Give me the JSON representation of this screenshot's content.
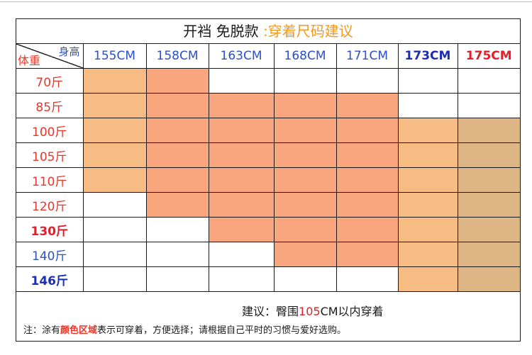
{
  "title": {
    "part1": "开裆 免脱款 ",
    "part2": ":穿着尺码建议"
  },
  "corner": {
    "height_label": "身高",
    "weight_label": "体重"
  },
  "heights": [
    {
      "label": "155CM",
      "style": ""
    },
    {
      "label": "158CM",
      "style": ""
    },
    {
      "label": "163CM",
      "style": ""
    },
    {
      "label": "168CM",
      "style": ""
    },
    {
      "label": "171CM",
      "style": ""
    },
    {
      "label": "173CM",
      "style": "bold-blue"
    },
    {
      "label": "175CM",
      "style": "bold-red"
    }
  ],
  "weights": [
    {
      "label": "70斤",
      "style": ""
    },
    {
      "label": "85斤",
      "style": ""
    },
    {
      "label": "100斤",
      "style": ""
    },
    {
      "label": "105斤",
      "style": ""
    },
    {
      "label": "110斤",
      "style": ""
    },
    {
      "label": "120斤",
      "style": ""
    },
    {
      "label": "130斤",
      "style": "bold-red"
    },
    {
      "label": "140斤",
      "style": "blue"
    },
    {
      "label": "146斤",
      "style": "bold-blue"
    }
  ],
  "colors": {
    "light": "#f7bc84",
    "salmon": "#f9a57e",
    "tan": "#deb585",
    "white": "#ffffff"
  },
  "grid": [
    [
      "light",
      "salmon",
      "white",
      "white",
      "white",
      "white",
      "white"
    ],
    [
      "light",
      "salmon",
      "salmon",
      "salmon",
      "salmon",
      "white",
      "white"
    ],
    [
      "light",
      "salmon",
      "salmon",
      "salmon",
      "salmon",
      "light",
      "tan"
    ],
    [
      "light",
      "salmon",
      "salmon",
      "salmon",
      "salmon",
      "light",
      "tan"
    ],
    [
      "light",
      "salmon",
      "salmon",
      "salmon",
      "salmon",
      "light",
      "tan"
    ],
    [
      "white",
      "salmon",
      "salmon",
      "salmon",
      "salmon",
      "light",
      "tan"
    ],
    [
      "white",
      "white",
      "salmon",
      "salmon",
      "salmon",
      "light",
      "tan"
    ],
    [
      "white",
      "white",
      "white",
      "salmon",
      "salmon",
      "light",
      "tan"
    ],
    [
      "white",
      "white",
      "white",
      "white",
      "white",
      "light",
      "tan"
    ]
  ],
  "suggestion": {
    "prefix": "建议：臀围",
    "value": "105",
    "suffix": "CM以内穿着"
  },
  "note": {
    "prefix": "注：涂有",
    "emphasis": "颜色区域",
    "suffix": "表示可穿着，方便选择；请根据自己平时的习惯与爱好选购。"
  }
}
